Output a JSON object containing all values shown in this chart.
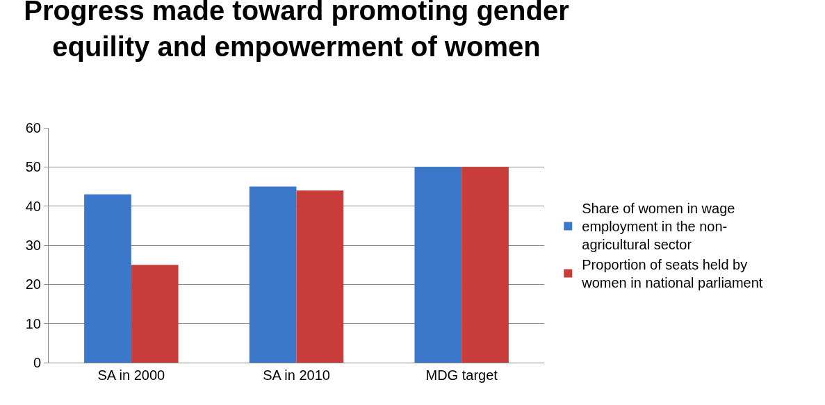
{
  "chart_data": {
    "type": "bar",
    "title": "Progress made toward promoting gender equility and empowerment of women",
    "categories": [
      "SA in 2000",
      "SA in 2010",
      "MDG target"
    ],
    "series": [
      {
        "name": "Share of women in wage employment in the non-agricultural sector",
        "color": "#3b78c9",
        "values": [
          43,
          45,
          50
        ]
      },
      {
        "name": "Proportion of seats held by women in national parliament",
        "color": "#c83d3a",
        "values": [
          25,
          44,
          50
        ]
      }
    ],
    "ylim": [
      0,
      60
    ],
    "yticks": [
      0,
      10,
      20,
      30,
      40,
      50,
      60
    ],
    "grid": "y",
    "legend": "right"
  }
}
